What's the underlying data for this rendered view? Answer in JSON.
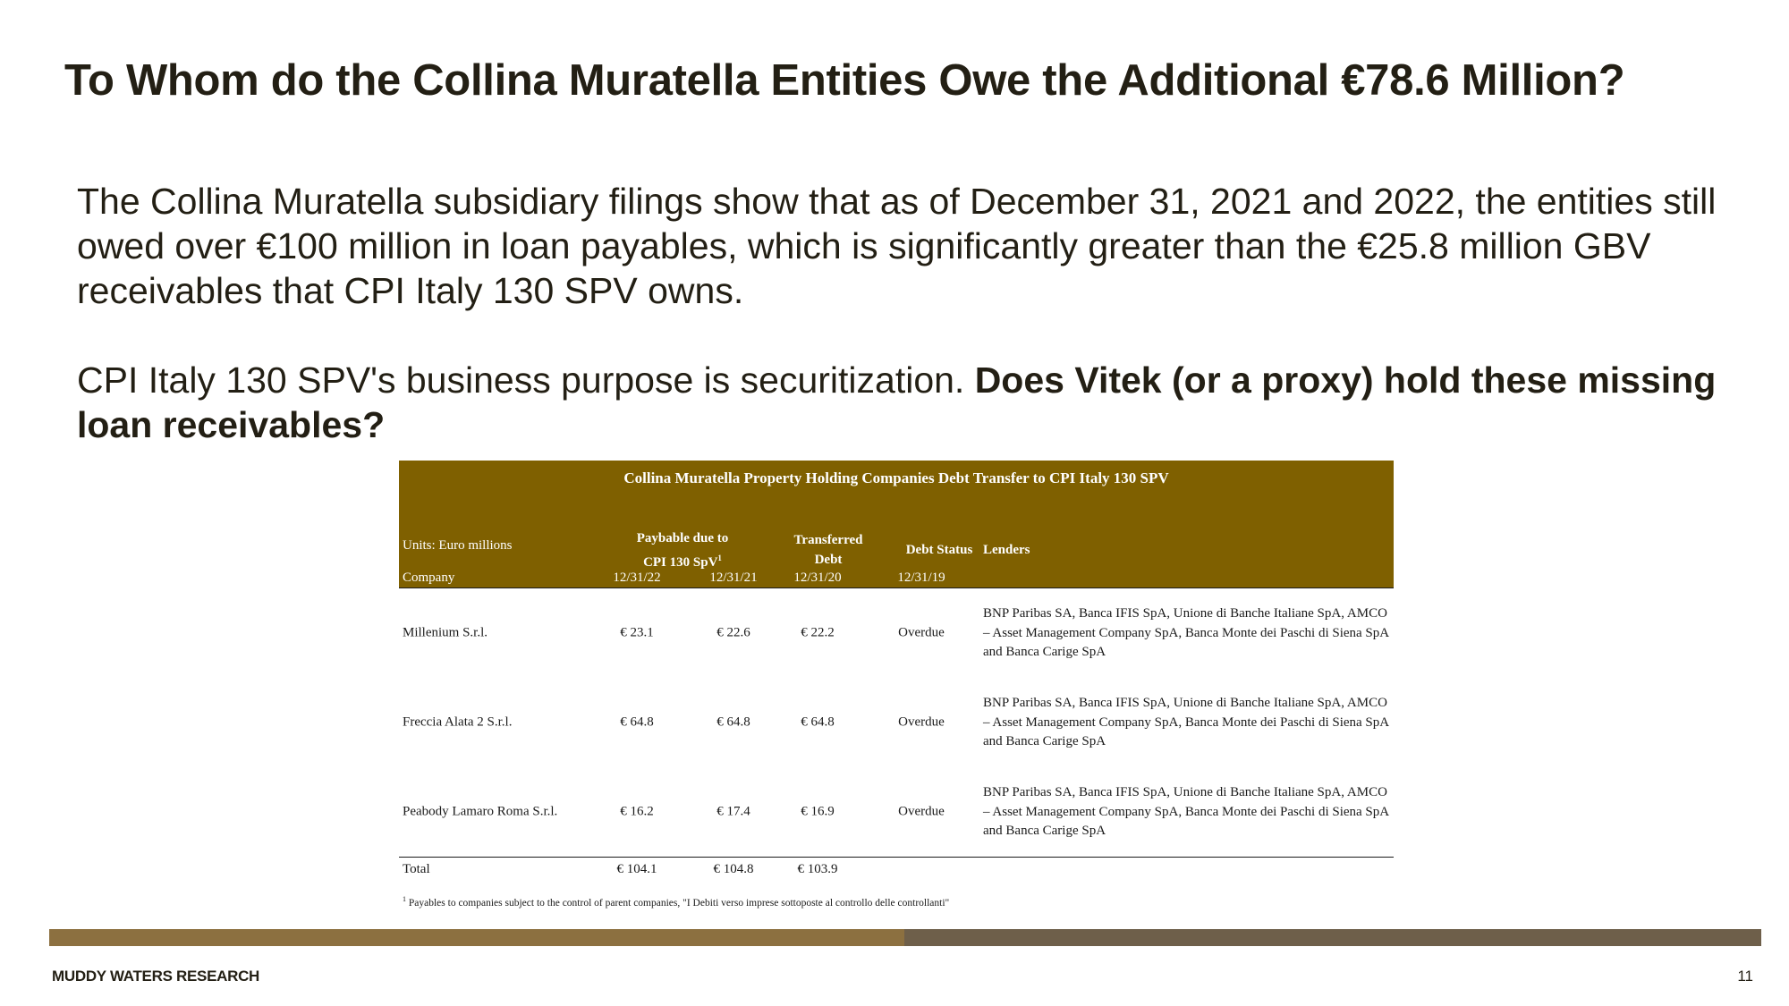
{
  "slide": {
    "title": "To Whom do the Collina Muratella Entities Owe the Additional €78.6 Million?",
    "paragraph1": "The Collina Muratella subsidiary filings show that as of December 31, 2021 and 2022, the entities still owed over €100 million in loan payables, which is significantly greater than the €25.8 million GBV receivables that CPI Italy 130 SPV owns.",
    "paragraph2_normal": "CPI Italy 130 SPV's business purpose is securitization. ",
    "paragraph2_bold": "Does Vitek (or a proxy) hold these missing loan receivables?"
  },
  "table": {
    "title": "Collina Muratella Property Holding Companies Debt Transfer to CPI Italy 130 SPV",
    "units_label": "Units: Euro millions",
    "company_label": "Company",
    "col_payable_line1": "Paybable due to",
    "col_payable_line2": "CPI 130 SpV",
    "col_payable_sup": "1",
    "col_transferred_line1": "Transferred",
    "col_transferred_line2": "Debt",
    "col_status": "Debt Status",
    "col_lenders": "Lenders",
    "dates": [
      "12/31/22",
      "12/31/21",
      "12/31/20",
      "12/31/19"
    ],
    "rows": [
      {
        "company": "Millenium S.r.l.",
        "v2022": "€ 23.1",
        "v2021": "€ 22.6",
        "v2020": "€ 22.2",
        "status": "Overdue",
        "lenders": "BNP Paribas SA, Banca IFIS SpA, Unione di Banche Italiane SpA, AMCO – Asset Management Company SpA, Banca Monte dei Paschi di Siena SpA and Banca Carige SpA"
      },
      {
        "company": "Freccia Alata 2 S.r.l.",
        "v2022": "€ 64.8",
        "v2021": "€ 64.8",
        "v2020": "€ 64.8",
        "status": "Overdue",
        "lenders": "BNP Paribas SA, Banca IFIS SpA, Unione di Banche Italiane SpA, AMCO – Asset Management Company SpA, Banca Monte dei Paschi di Siena SpA and Banca Carige SpA"
      },
      {
        "company": "Peabody Lamaro Roma S.r.l.",
        "v2022": "€ 16.2",
        "v2021": "€ 17.4",
        "v2020": "€ 16.9",
        "status": "Overdue",
        "lenders": "BNP Paribas SA, Banca IFIS SpA, Unione di Banche Italiane SpA, AMCO – Asset Management Company SpA, Banca Monte dei Paschi di Siena SpA and Banca Carige SpA"
      }
    ],
    "total": {
      "label": "Total",
      "v2022": "€ 104.1",
      "v2021": "€ 104.8",
      "v2020": "€ 103.9"
    },
    "footnote_marker": "1",
    "footnote": "Payables to companies subject to the control of parent companies, \"I Debiti verso imprese sottoposte al controllo delle controllanti\""
  },
  "footer": {
    "brand": "MUDDY WATERS RESEARCH",
    "page_number": "11"
  },
  "colors": {
    "table_header": "#7f6000",
    "bar_left": "#8c7040",
    "bar_right": "#6e5f4a",
    "text": "#231f14"
  }
}
